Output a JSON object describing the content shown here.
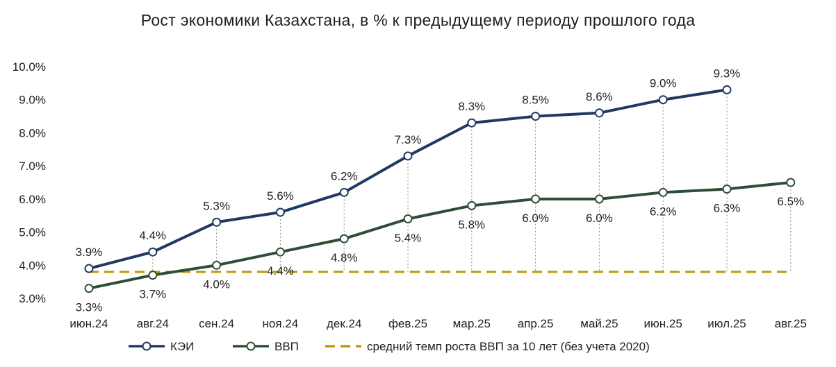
{
  "chart_data": {
    "type": "line",
    "title": "Рост экономики Казахстана, в % к предыдущему периоду прошлого года",
    "categories": [
      "июн.24",
      "авг.24",
      "сен.24",
      "ноя.24",
      "дек.24",
      "фев.25",
      "мар.25",
      "апр.25",
      "май.25",
      "июн.25",
      "июл.25",
      "авг.25"
    ],
    "y_ticks": [
      "3.0%",
      "4.0%",
      "5.0%",
      "6.0%",
      "7.0%",
      "8.0%",
      "9.0%",
      "10.0%"
    ],
    "ylim": [
      3.0,
      10.0
    ],
    "grid": false,
    "legend_position": "bottom",
    "series": [
      {
        "name": "КЭИ",
        "color": "#1f3864",
        "values": [
          3.9,
          4.4,
          5.3,
          5.6,
          6.2,
          7.3,
          8.3,
          8.5,
          8.6,
          9.0,
          9.3,
          null
        ],
        "labels": [
          "3.9%",
          "4.4%",
          "5.3%",
          "5.6%",
          "6.2%",
          "7.3%",
          "8.3%",
          "8.5%",
          "8.6%",
          "9.0%",
          "9.3%",
          ""
        ]
      },
      {
        "name": "ВВП",
        "color": "#2e4d36",
        "values": [
          3.3,
          3.7,
          4.0,
          4.4,
          4.8,
          5.4,
          5.8,
          6.0,
          6.0,
          6.2,
          6.3,
          6.5
        ],
        "labels": [
          "3.3%",
          "3.7%",
          "4.0%",
          "4.4%",
          "4.8%",
          "5.4%",
          "5.8%",
          "6.0%",
          "6.0%",
          "6.2%",
          "6.3%",
          "6.5%"
        ]
      }
    ],
    "reference_line": {
      "name": "средний темп роста ВВП за 10 лет (без учета 2020)",
      "value": 3.8,
      "color": "#c09a00",
      "style": "dashed"
    }
  }
}
